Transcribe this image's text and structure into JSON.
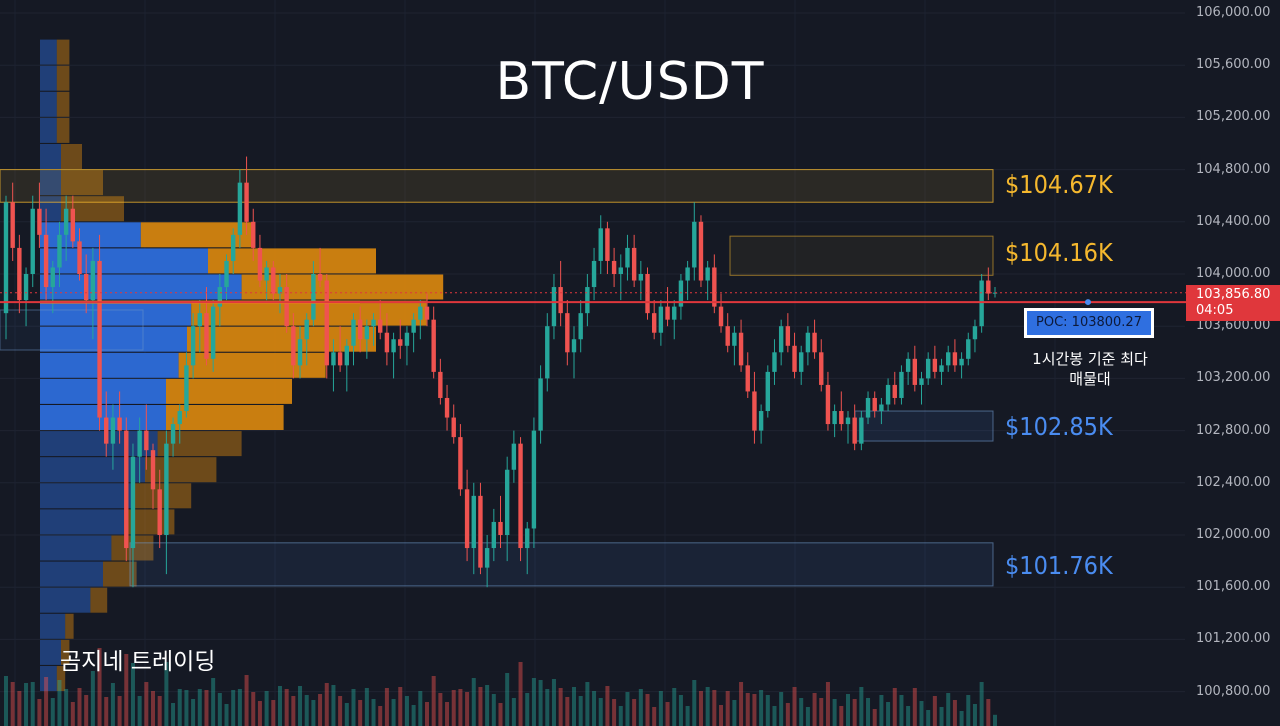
{
  "title": "BTC/USDT",
  "watermark": "곰지네 트레이딩",
  "zone_labels": [
    {
      "text": "$104.67K",
      "color": "#f5b82e"
    },
    {
      "text": "$104.16K",
      "color": "#f5b82e"
    },
    {
      "text": "$102.85K",
      "color": "#4a8cf0"
    },
    {
      "text": "$101.76K",
      "color": "#4a8cf0"
    }
  ],
  "poc_label": "POC: 103800.27",
  "poc_note": "1시간봉 기준 최다 매물대",
  "current_price": "103,856.80",
  "countdown": "04:05",
  "colors": {
    "background": "#151924",
    "up": "#26a69a",
    "down": "#ef5350",
    "zone_yellow": "#f5b82e",
    "zone_blue": "#4a8cf0",
    "vp_blue": "#2f6fe0",
    "vp_orange": "#d9870f",
    "price_line": "#e0373c"
  },
  "chart_data": {
    "type": "candlestick",
    "title": "BTC/USDT",
    "y_axis": {
      "ticks": [
        106000,
        105600,
        105200,
        104800,
        104400,
        104000,
        103600,
        103200,
        102800,
        102400,
        102000,
        101600,
        101200,
        100800
      ],
      "tick_labels": [
        "106,000.00",
        "105,600.00",
        "105,200.00",
        "104,800.00",
        "104,400.00",
        "104,000.00",
        "103,600.00",
        "103,200.00",
        "102,800.00",
        "102,400.00",
        "102,000.00",
        "101,600.00",
        "101,200.00",
        "100,800.00"
      ],
      "range": [
        100560,
        106100
      ],
      "position": "right"
    },
    "last_price": 103856.8,
    "poc": 103800.27,
    "zones": [
      {
        "label": "$104.67K",
        "low": 104550,
        "high": 104800,
        "color": "yellow"
      },
      {
        "label": "$104.16K",
        "low": 103990,
        "high": 104290,
        "color": "yellow"
      },
      {
        "label": "$102.85K",
        "low": 102720,
        "high": 102950,
        "color": "blue"
      },
      {
        "label": "$101.76K",
        "low": 101610,
        "high": 101940,
        "color": "blue"
      }
    ],
    "candles": [
      [
        103700,
        104600,
        103500,
        104550
      ],
      [
        104550,
        104700,
        104100,
        104200
      ],
      [
        104200,
        104300,
        103700,
        103800
      ],
      [
        103800,
        104050,
        103600,
        104000
      ],
      [
        104000,
        104600,
        103900,
        104500
      ],
      [
        104500,
        104700,
        104200,
        104300
      ],
      [
        104300,
        104500,
        103800,
        103900
      ],
      [
        103900,
        104100,
        103700,
        104050
      ],
      [
        104050,
        104400,
        103900,
        104300
      ],
      [
        104300,
        104600,
        104100,
        104500
      ],
      [
        104500,
        104600,
        104200,
        104250
      ],
      [
        104250,
        104350,
        103950,
        104000
      ],
      [
        104000,
        104150,
        103700,
        103800
      ],
      [
        103800,
        104200,
        103500,
        104100
      ],
      [
        104100,
        104300,
        102800,
        102900
      ],
      [
        102900,
        103100,
        102600,
        102700
      ],
      [
        102700,
        103000,
        102500,
        102900
      ],
      [
        102900,
        103100,
        102700,
        102800
      ],
      [
        102800,
        102900,
        101800,
        101900
      ],
      [
        101900,
        102700,
        101600,
        102600
      ],
      [
        102600,
        102900,
        102400,
        102800
      ],
      [
        102800,
        103000,
        102500,
        102650
      ],
      [
        102650,
        102700,
        102200,
        102350
      ],
      [
        102350,
        102500,
        101900,
        102000
      ],
      [
        102000,
        102800,
        101700,
        102700
      ],
      [
        102700,
        102900,
        102600,
        102850
      ],
      [
        102850,
        103000,
        102700,
        102950
      ],
      [
        102950,
        103400,
        102900,
        103300
      ],
      [
        103300,
        103700,
        103200,
        103600
      ],
      [
        103600,
        103800,
        103400,
        103700
      ],
      [
        103700,
        103900,
        103300,
        103350
      ],
      [
        103350,
        103800,
        103250,
        103750
      ],
      [
        103750,
        104000,
        103600,
        103900
      ],
      [
        103900,
        104150,
        103800,
        104100
      ],
      [
        104100,
        104350,
        104000,
        104300
      ],
      [
        104300,
        104800,
        104200,
        104700
      ],
      [
        104700,
        104900,
        104300,
        104400
      ],
      [
        104400,
        104500,
        104100,
        104200
      ],
      [
        104200,
        104300,
        103900,
        103950
      ],
      [
        103950,
        104100,
        103800,
        104050
      ],
      [
        104050,
        104100,
        103800,
        103850
      ],
      [
        103850,
        104000,
        103700,
        103900
      ],
      [
        103900,
        104000,
        103550,
        103600
      ],
      [
        103600,
        103700,
        103200,
        103300
      ],
      [
        103300,
        103600,
        103200,
        103500
      ],
      [
        103500,
        103700,
        103300,
        103650
      ],
      [
        103650,
        104100,
        103600,
        104000
      ],
      [
        104000,
        104200,
        103900,
        103950
      ],
      [
        103950,
        104000,
        103200,
        103300
      ],
      [
        103300,
        103500,
        103100,
        103400
      ],
      [
        103400,
        103600,
        103250,
        103300
      ],
      [
        103300,
        103500,
        103100,
        103450
      ],
      [
        103450,
        103700,
        103300,
        103650
      ],
      [
        103650,
        103750,
        103400,
        103500
      ],
      [
        103500,
        103650,
        103350,
        103600
      ],
      [
        103600,
        103700,
        103450,
        103650
      ],
      [
        103650,
        103800,
        103500,
        103550
      ],
      [
        103550,
        103700,
        103300,
        103400
      ],
      [
        103400,
        103550,
        103200,
        103500
      ],
      [
        103500,
        103650,
        103350,
        103450
      ],
      [
        103450,
        103600,
        103300,
        103550
      ],
      [
        103550,
        103700,
        103400,
        103650
      ],
      [
        103650,
        103800,
        103500,
        103750
      ],
      [
        103750,
        103850,
        103600,
        103650
      ],
      [
        103650,
        103750,
        103200,
        103250
      ],
      [
        103250,
        103350,
        103000,
        103050
      ],
      [
        103050,
        103150,
        102800,
        102900
      ],
      [
        102900,
        103000,
        102700,
        102750
      ],
      [
        102750,
        102850,
        102300,
        102350
      ],
      [
        102350,
        102500,
        101800,
        101900
      ],
      [
        101900,
        102400,
        101700,
        102300
      ],
      [
        102300,
        102400,
        101700,
        101750
      ],
      [
        101750,
        102000,
        101600,
        101900
      ],
      [
        101900,
        102200,
        101800,
        102100
      ],
      [
        102100,
        102300,
        101900,
        102000
      ],
      [
        102000,
        102600,
        101800,
        102500
      ],
      [
        102500,
        102800,
        102400,
        102700
      ],
      [
        102700,
        102750,
        101800,
        101900
      ],
      [
        101900,
        102100,
        101700,
        102050
      ],
      [
        102050,
        102900,
        101900,
        102800
      ],
      [
        102800,
        103300,
        102700,
        103200
      ],
      [
        103200,
        103700,
        103100,
        103600
      ],
      [
        103600,
        104000,
        103500,
        103900
      ],
      [
        103900,
        104100,
        103600,
        103700
      ],
      [
        103700,
        103800,
        103300,
        103400
      ],
      [
        103400,
        103600,
        103200,
        103500
      ],
      [
        103500,
        103800,
        103400,
        103700
      ],
      [
        103700,
        104000,
        103600,
        103900
      ],
      [
        103900,
        104200,
        103800,
        104100
      ],
      [
        104100,
        104450,
        104000,
        104350
      ],
      [
        104350,
        104400,
        104000,
        104100
      ],
      [
        104100,
        104200,
        103900,
        104000
      ],
      [
        104000,
        104150,
        103800,
        104050
      ],
      [
        104050,
        104300,
        103950,
        104200
      ],
      [
        104200,
        104300,
        103900,
        103950
      ],
      [
        103950,
        104100,
        103800,
        104000
      ],
      [
        104000,
        104050,
        103650,
        103700
      ],
      [
        103700,
        103800,
        103500,
        103550
      ],
      [
        103550,
        103800,
        103450,
        103750
      ],
      [
        103750,
        103900,
        103600,
        103650
      ],
      [
        103650,
        103800,
        103500,
        103750
      ],
      [
        103750,
        104000,
        103650,
        103950
      ],
      [
        103950,
        104100,
        103800,
        104050
      ],
      [
        104050,
        104550,
        103950,
        104400
      ],
      [
        104400,
        104450,
        103900,
        103950
      ],
      [
        103950,
        104100,
        103800,
        104050
      ],
      [
        104050,
        104150,
        103700,
        103750
      ],
      [
        103750,
        103850,
        103550,
        103600
      ],
      [
        103600,
        103700,
        103400,
        103450
      ],
      [
        103450,
        103600,
        103300,
        103550
      ],
      [
        103550,
        103650,
        103250,
        103300
      ],
      [
        103300,
        103400,
        103050,
        103100
      ],
      [
        103100,
        103250,
        102700,
        102800
      ],
      [
        102800,
        103000,
        102700,
        102950
      ],
      [
        102950,
        103300,
        102900,
        103250
      ],
      [
        103250,
        103500,
        103150,
        103400
      ],
      [
        103400,
        103650,
        103300,
        103600
      ],
      [
        103600,
        103700,
        103400,
        103450
      ],
      [
        103450,
        103550,
        103200,
        103250
      ],
      [
        103250,
        103450,
        103150,
        103400
      ],
      [
        103400,
        103600,
        103300,
        103550
      ],
      [
        103550,
        103650,
        103350,
        103400
      ],
      [
        103400,
        103500,
        103100,
        103150
      ],
      [
        103150,
        103250,
        102800,
        102850
      ],
      [
        102850,
        103000,
        102750,
        102950
      ],
      [
        102950,
        103100,
        102800,
        102850
      ],
      [
        102850,
        102950,
        102700,
        102900
      ],
      [
        102900,
        103000,
        102650,
        102700
      ],
      [
        102700,
        102950,
        102650,
        102900
      ],
      [
        102900,
        103100,
        102850,
        103050
      ],
      [
        103050,
        103100,
        102900,
        102950
      ],
      [
        102950,
        103050,
        102850,
        103000
      ],
      [
        103000,
        103200,
        102950,
        103150
      ],
      [
        103150,
        103250,
        103000,
        103050
      ],
      [
        103050,
        103300,
        103000,
        103250
      ],
      [
        103250,
        103400,
        103150,
        103350
      ],
      [
        103350,
        103450,
        103100,
        103150
      ],
      [
        103150,
        103250,
        103000,
        103200
      ],
      [
        103200,
        103400,
        103150,
        103350
      ],
      [
        103350,
        103450,
        103200,
        103250
      ],
      [
        103250,
        103350,
        103150,
        103300
      ],
      [
        103300,
        103450,
        103250,
        103400
      ],
      [
        103400,
        103500,
        103250,
        103300
      ],
      [
        103300,
        103400,
        103200,
        103350
      ],
      [
        103350,
        103550,
        103300,
        103500
      ],
      [
        103500,
        103650,
        103400,
        103600
      ],
      [
        103600,
        104000,
        103550,
        103950
      ],
      [
        103950,
        104050,
        103800,
        103850
      ],
      [
        103850,
        103900,
        103820,
        103857
      ]
    ],
    "volume_profile": {
      "levels_desc": [
        105700,
        105500,
        105300,
        105100,
        104900,
        104700,
        104500,
        104300,
        104100,
        103900,
        103700,
        103500,
        103300,
        103100,
        102900,
        102700,
        102500,
        102300,
        102100,
        101900,
        101700,
        101500,
        101300,
        101100,
        100900
      ],
      "buy": [
        0.04,
        0.04,
        0.04,
        0.04,
        0.05,
        0.05,
        0.05,
        0.24,
        0.4,
        0.48,
        0.36,
        0.35,
        0.33,
        0.3,
        0.3,
        0.28,
        0.25,
        0.22,
        0.2,
        0.17,
        0.15,
        0.12,
        0.06,
        0.05,
        0.04
      ],
      "sell": [
        0.03,
        0.03,
        0.03,
        0.03,
        0.05,
        0.1,
        0.15,
        0.27,
        0.4,
        0.48,
        0.56,
        0.45,
        0.35,
        0.3,
        0.28,
        0.2,
        0.17,
        0.14,
        0.12,
        0.1,
        0.08,
        0.04,
        0.02,
        0.02,
        0.02
      ]
    }
  }
}
